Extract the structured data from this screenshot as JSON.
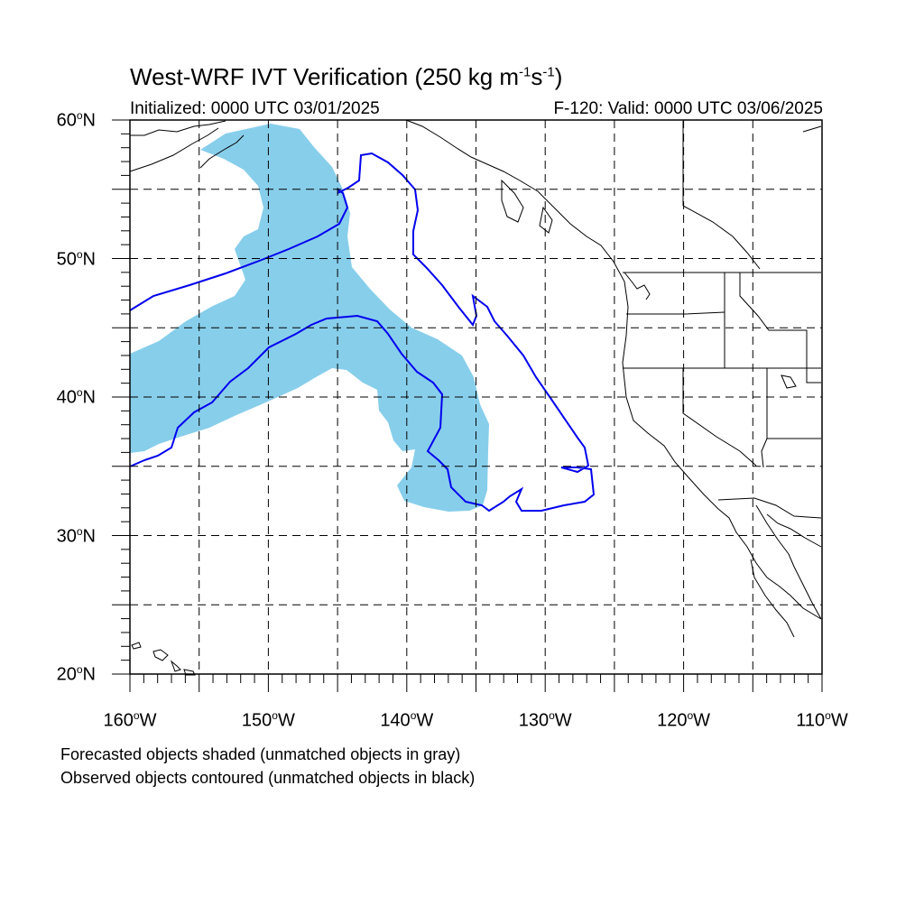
{
  "title": {
    "main": "West-WRF IVT Verification (250 kg m",
    "exp1": "-1",
    "mid": "s",
    "exp2": "-1",
    "close": ")"
  },
  "subtitle_left": "Initialized: 0000 UTC 03/01/2025",
  "subtitle_right": "F-120: Valid: 0000 UTC 03/06/2025",
  "caption_line1": "Forecasted objects shaded (unmatched objects in gray)",
  "caption_line2": "Observed objects contoured (unmatched objects in black)",
  "map": {
    "lon_range": [
      -160,
      -110
    ],
    "lat_range": [
      20,
      60
    ],
    "gridline_style": "dashed",
    "forecast_fill_color": "#87ceeb",
    "observed_contour_color": "#0000ee",
    "coastline_color": "#000000",
    "lat_ticks": [
      {
        "value": 60,
        "num": "60",
        "deg": "o",
        "hem": "N"
      },
      {
        "value": 50,
        "num": "50",
        "deg": "o",
        "hem": "N"
      },
      {
        "value": 40,
        "num": "40",
        "deg": "o",
        "hem": "N"
      },
      {
        "value": 30,
        "num": "30",
        "deg": "o",
        "hem": "N"
      },
      {
        "value": 20,
        "num": "20",
        "deg": "o",
        "hem": "N"
      }
    ],
    "lon_ticks": [
      {
        "value": -160,
        "num": "160",
        "deg": "o",
        "hem": "W"
      },
      {
        "value": -150,
        "num": "150",
        "deg": "o",
        "hem": "W"
      },
      {
        "value": -140,
        "num": "140",
        "deg": "o",
        "hem": "W"
      },
      {
        "value": -130,
        "num": "130",
        "deg": "o",
        "hem": "W"
      },
      {
        "value": -120,
        "num": "120",
        "deg": "o",
        "hem": "W"
      },
      {
        "value": -110,
        "num": "110",
        "deg": "o",
        "hem": "W"
      }
    ]
  }
}
